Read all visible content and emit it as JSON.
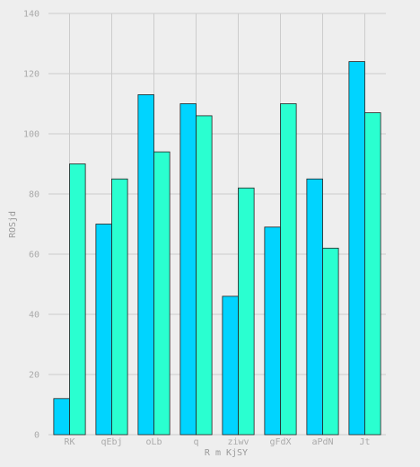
{
  "chart_data": {
    "type": "bar",
    "categories": [
      "RK",
      "qEbj",
      "oLb",
      "q",
      "ziwv",
      "gFdX",
      "aPdN",
      "Jt"
    ],
    "series": [
      {
        "color": "#00d4ff",
        "values": [
          12,
          70,
          113,
          110,
          46,
          69,
          85,
          124
        ]
      },
      {
        "color": "#2affd0",
        "values": [
          90,
          85,
          94,
          106,
          82,
          110,
          62,
          107
        ]
      }
    ],
    "xlabel": "R m KjSY",
    "ylabel": "ROSjd",
    "ylim": [
      0,
      140
    ],
    "yticks": [
      0,
      20,
      40,
      60,
      80,
      100,
      120,
      140
    ],
    "grid": true,
    "legend": "none",
    "background": "#eeeeee",
    "grid_color": "#cccccc",
    "bar_edge_color": "#222222"
  }
}
